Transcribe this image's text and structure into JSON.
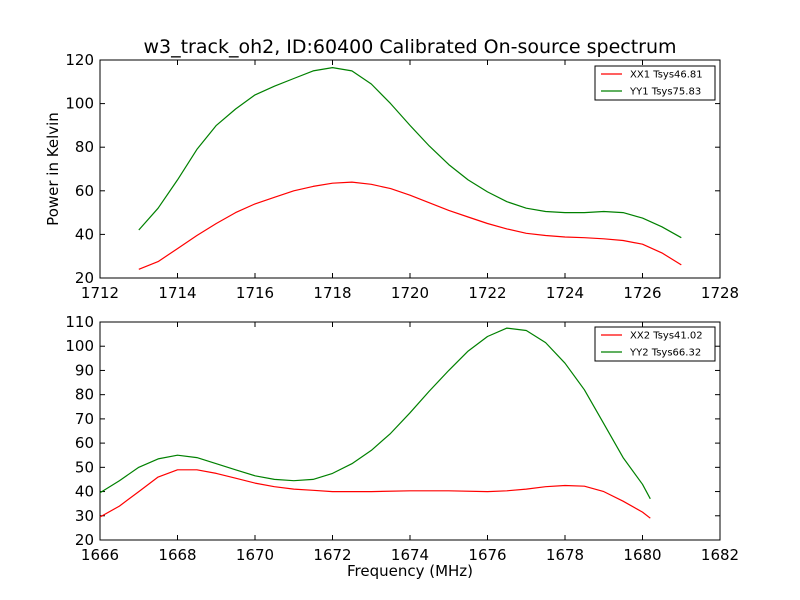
{
  "figure": {
    "title": "w3_track_oh2, ID:60400 Calibrated On-source spectrum",
    "ylabel": "Power in Kelvin",
    "xlabel": "Frequency (MHz)"
  },
  "chart_data": [
    {
      "type": "line",
      "xlim": [
        1712,
        1728
      ],
      "ylim": [
        20,
        120
      ],
      "xticks": [
        1712,
        1714,
        1716,
        1718,
        1720,
        1722,
        1724,
        1726,
        1728
      ],
      "yticks": [
        20,
        40,
        60,
        80,
        100,
        120
      ],
      "legend_position": "top-right",
      "series": [
        {
          "name": "XX1 Tsys46.81",
          "color": "#ff0000",
          "points": [
            [
              1713,
              24
            ],
            [
              1713.5,
              27.5
            ],
            [
              1714,
              33.5
            ],
            [
              1714.5,
              39.5
            ],
            [
              1715,
              45
            ],
            [
              1715.5,
              50
            ],
            [
              1716,
              54
            ],
            [
              1716.5,
              57
            ],
            [
              1717,
              60
            ],
            [
              1717.5,
              62
            ],
            [
              1718,
              63.5
            ],
            [
              1718.5,
              64
            ],
            [
              1719,
              63
            ],
            [
              1719.5,
              61
            ],
            [
              1720,
              58
            ],
            [
              1720.5,
              54.5
            ],
            [
              1721,
              51
            ],
            [
              1721.5,
              48
            ],
            [
              1722,
              45
            ],
            [
              1722.5,
              42.5
            ],
            [
              1723,
              40.5
            ],
            [
              1723.5,
              39.5
            ],
            [
              1724,
              38.8
            ],
            [
              1724.5,
              38.5
            ],
            [
              1725,
              38
            ],
            [
              1725.5,
              37.2
            ],
            [
              1726,
              35.5
            ],
            [
              1726.5,
              31.5
            ],
            [
              1727,
              26
            ]
          ]
        },
        {
          "name": "YY1 Tsys75.83",
          "color": "#008000",
          "points": [
            [
              1713,
              42
            ],
            [
              1713.5,
              52
            ],
            [
              1714,
              65
            ],
            [
              1714.5,
              79
            ],
            [
              1715,
              90
            ],
            [
              1715.5,
              97.5
            ],
            [
              1716,
              104
            ],
            [
              1716.5,
              108
            ],
            [
              1717,
              111.5
            ],
            [
              1717.5,
              115
            ],
            [
              1718,
              116.5
            ],
            [
              1718.5,
              115
            ],
            [
              1719,
              109
            ],
            [
              1719.5,
              100
            ],
            [
              1720,
              90
            ],
            [
              1720.5,
              80.5
            ],
            [
              1721,
              72
            ],
            [
              1721.5,
              65
            ],
            [
              1722,
              59.5
            ],
            [
              1722.5,
              55
            ],
            [
              1723,
              52
            ],
            [
              1723.5,
              50.5
            ],
            [
              1724,
              50
            ],
            [
              1724.5,
              50
            ],
            [
              1725,
              50.5
            ],
            [
              1725.5,
              50
            ],
            [
              1726,
              47.5
            ],
            [
              1726.5,
              43.5
            ],
            [
              1727,
              38.5
            ]
          ]
        }
      ]
    },
    {
      "type": "line",
      "xlim": [
        1666,
        1682
      ],
      "ylim": [
        20,
        110
      ],
      "xticks": [
        1666,
        1668,
        1670,
        1672,
        1674,
        1676,
        1678,
        1680,
        1682
      ],
      "yticks": [
        20,
        30,
        40,
        50,
        60,
        70,
        80,
        90,
        100,
        110
      ],
      "legend_position": "top-right",
      "series": [
        {
          "name": "XX2 Tsys41.02",
          "color": "#ff0000",
          "points": [
            [
              1666,
              29.5
            ],
            [
              1666.5,
              34
            ],
            [
              1667,
              40
            ],
            [
              1667.5,
              46
            ],
            [
              1668,
              49
            ],
            [
              1668.5,
              49
            ],
            [
              1669,
              47.5
            ],
            [
              1669.5,
              45.5
            ],
            [
              1670,
              43.5
            ],
            [
              1670.5,
              42
            ],
            [
              1671,
              41
            ],
            [
              1671.5,
              40.5
            ],
            [
              1672,
              40
            ],
            [
              1673,
              40
            ],
            [
              1674,
              40.3
            ],
            [
              1675,
              40.3
            ],
            [
              1676,
              40
            ],
            [
              1676.5,
              40.3
            ],
            [
              1677,
              41
            ],
            [
              1677.5,
              42
            ],
            [
              1678,
              42.5
            ],
            [
              1678.5,
              42.2
            ],
            [
              1679,
              40
            ],
            [
              1679.5,
              36
            ],
            [
              1680,
              31.5
            ],
            [
              1680.2,
              29
            ]
          ]
        },
        {
          "name": "YY2 Tsys66.32",
          "color": "#008000",
          "points": [
            [
              1666,
              39.5
            ],
            [
              1666.5,
              44.5
            ],
            [
              1667,
              50
            ],
            [
              1667.5,
              53.5
            ],
            [
              1668,
              55
            ],
            [
              1668.5,
              54
            ],
            [
              1669,
              51.5
            ],
            [
              1669.5,
              49
            ],
            [
              1670,
              46.5
            ],
            [
              1670.5,
              45
            ],
            [
              1671,
              44.5
            ],
            [
              1671.5,
              45
            ],
            [
              1672,
              47.5
            ],
            [
              1672.5,
              51.5
            ],
            [
              1673,
              57
            ],
            [
              1673.5,
              64
            ],
            [
              1674,
              72.5
            ],
            [
              1674.5,
              81.5
            ],
            [
              1675,
              90
            ],
            [
              1675.5,
              98
            ],
            [
              1676,
              104
            ],
            [
              1676.5,
              107.5
            ],
            [
              1677,
              106.5
            ],
            [
              1677.5,
              101.5
            ],
            [
              1678,
              93
            ],
            [
              1678.5,
              82
            ],
            [
              1679,
              68
            ],
            [
              1679.5,
              54
            ],
            [
              1680,
              43
            ],
            [
              1680.2,
              37
            ]
          ]
        }
      ]
    }
  ]
}
